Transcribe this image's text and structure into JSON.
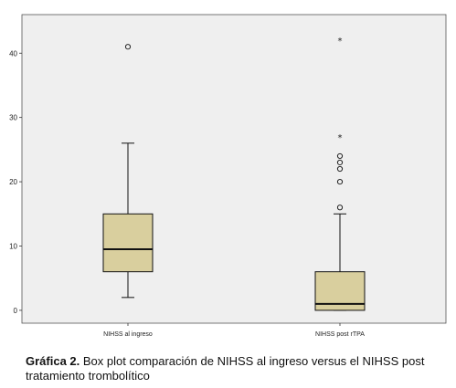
{
  "chart_data": {
    "type": "boxplot",
    "title": "",
    "xlabel": "",
    "ylabel": "",
    "ylim": [
      -2,
      46
    ],
    "yticks": [
      0,
      10,
      20,
      30,
      40
    ],
    "categories": [
      "NIHSS al ingreso",
      "NIHSS post rTPA"
    ],
    "boxes": [
      {
        "category": "NIHSS al ingreso",
        "whisker_low": 2,
        "q1": 6,
        "median": 9.5,
        "q3": 15,
        "whisker_high": 26,
        "outliers": [
          41
        ],
        "extremes": []
      },
      {
        "category": "NIHSS post rTPA",
        "whisker_low": 0,
        "q1": 0,
        "median": 1,
        "q3": 6,
        "whisker_high": 15,
        "outliers": [
          16,
          20,
          22,
          23,
          24
        ],
        "extremes": [
          27,
          42
        ]
      }
    ],
    "grid": false,
    "colors": {
      "plot_background": "#efefef",
      "box_fill": "#d9cf9e",
      "line": "#111111"
    }
  },
  "caption": {
    "label": "Gráfica 2.",
    "text": " Box plot comparación de NIHSS al ingreso versus el NIHSS post tratamiento trombolítico"
  }
}
